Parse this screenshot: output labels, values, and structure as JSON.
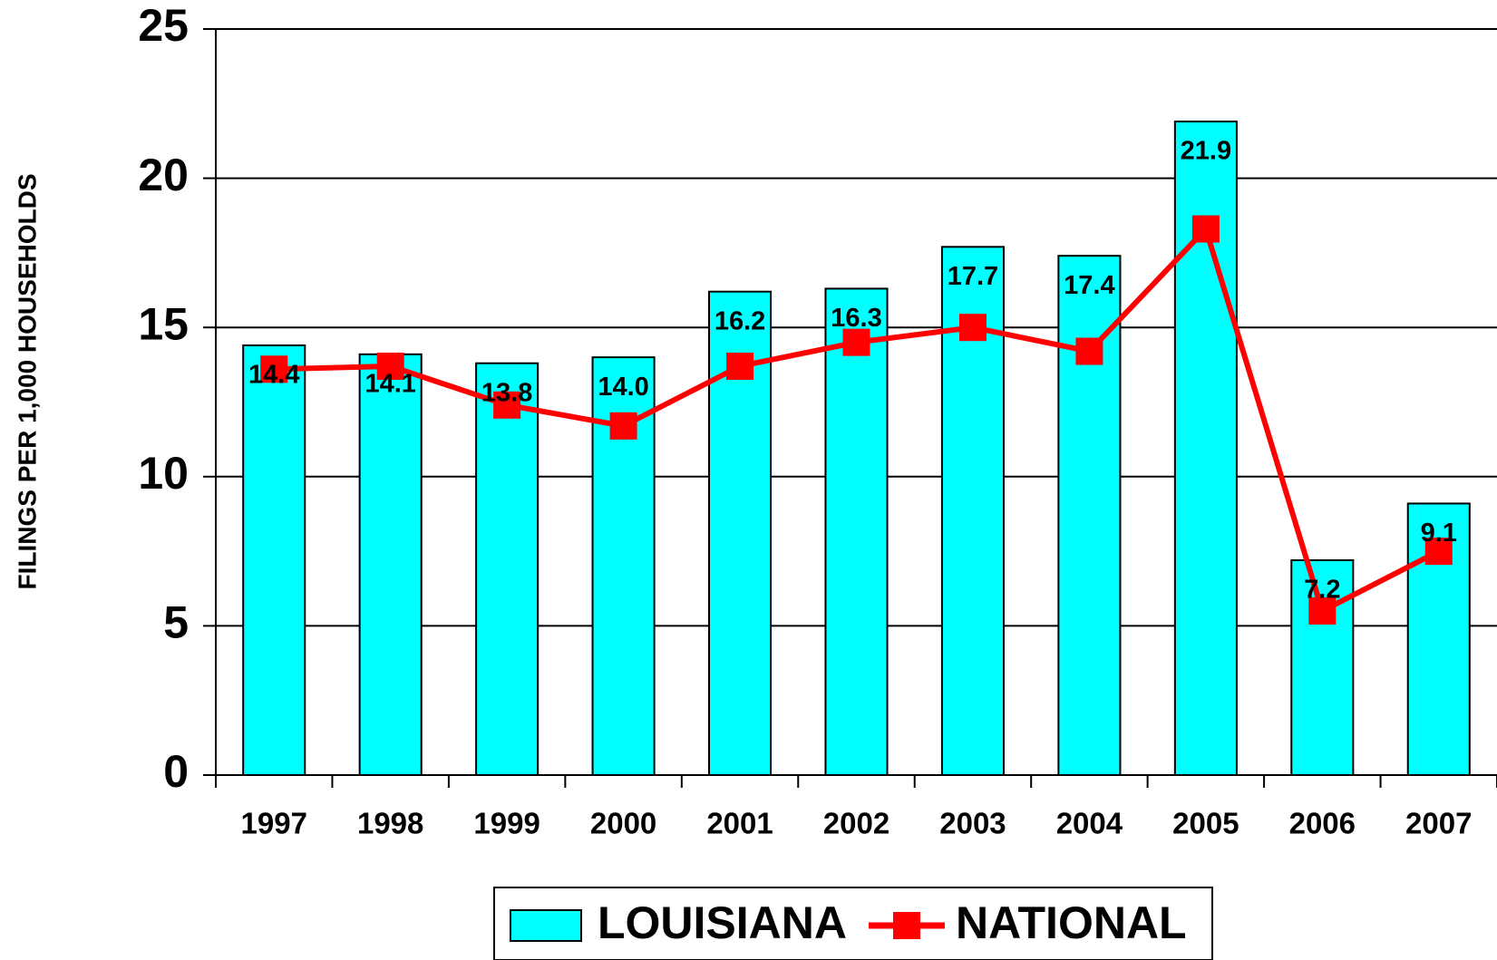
{
  "chart_data": {
    "type": "bar",
    "y_label": "FILINGS PER 1,000 HOUSEHOLDS",
    "categories": [
      "1997",
      "1998",
      "1999",
      "2000",
      "2001",
      "2002",
      "2003",
      "2004",
      "2005",
      "2006",
      "2007"
    ],
    "series": [
      {
        "name": "LOUISIANA",
        "type": "bar",
        "color": "#00ffff",
        "values": [
          14.4,
          14.1,
          13.8,
          14.0,
          16.2,
          16.3,
          17.7,
          17.4,
          21.9,
          7.2,
          9.1
        ],
        "value_labels": [
          "14.4",
          "14.1",
          "13.8",
          "14.0",
          "16.2",
          "16.3",
          "17.7",
          "17.4",
          "21.9",
          "7.2",
          "9.1"
        ]
      },
      {
        "name": "NATIONAL",
        "type": "line",
        "color": "#ff0000",
        "values": [
          13.6,
          13.7,
          12.4,
          11.7,
          13.7,
          14.5,
          15.0,
          14.2,
          18.3,
          5.5,
          7.5
        ]
      }
    ],
    "ylim": [
      0,
      25
    ],
    "yticks": [
      0,
      5,
      10,
      15,
      20,
      25
    ],
    "grid": true,
    "legend": "bottom"
  }
}
